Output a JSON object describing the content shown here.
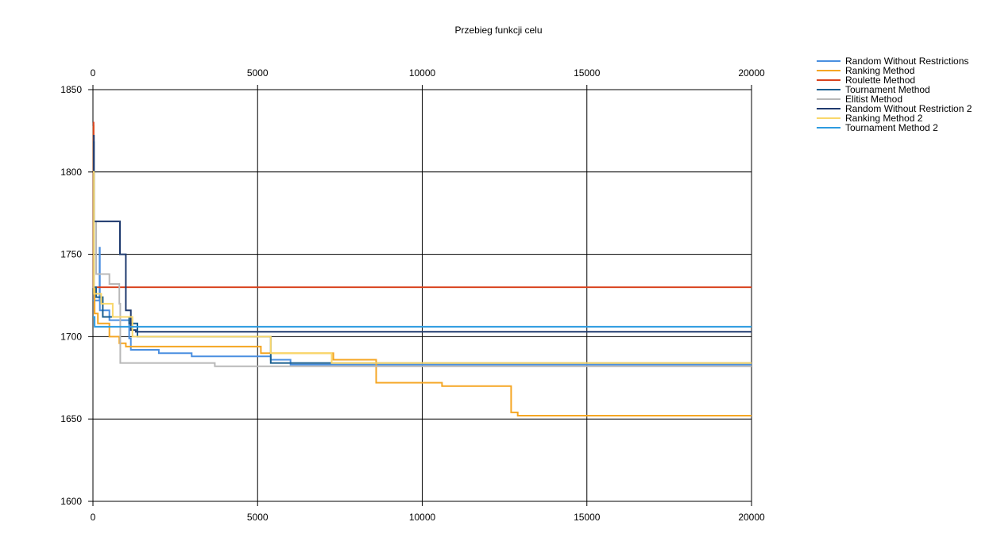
{
  "chart_data": {
    "type": "line",
    "title": "Przebieg funkcji celu",
    "xlabel": "",
    "ylabel": "",
    "xlim": [
      0,
      20000
    ],
    "ylim": [
      1600,
      1850
    ],
    "x_ticks": [
      0,
      5000,
      10000,
      15000,
      20000
    ],
    "y_ticks": [
      1600,
      1650,
      1700,
      1750,
      1800,
      1850
    ],
    "grid": true,
    "legend_position": "top-right",
    "series": [
      {
        "name": "Random Without Restrictions",
        "color": "#4a8fe0",
        "step": true,
        "points": [
          [
            0,
            1722
          ],
          [
            200,
            1722
          ],
          [
            200,
            1754
          ],
          [
            210,
            1754
          ],
          [
            210,
            1716
          ],
          [
            500,
            1716
          ],
          [
            500,
            1710
          ],
          [
            1100,
            1710
          ],
          [
            1100,
            1699
          ],
          [
            1150,
            1699
          ],
          [
            1150,
            1692
          ],
          [
            2000,
            1692
          ],
          [
            2000,
            1690
          ],
          [
            3000,
            1690
          ],
          [
            3000,
            1688
          ],
          [
            5400,
            1688
          ],
          [
            5400,
            1686
          ],
          [
            6000,
            1686
          ],
          [
            6000,
            1683
          ],
          [
            20000,
            1683
          ]
        ]
      },
      {
        "name": "Ranking Method",
        "color": "#f5a623",
        "step": true,
        "points": [
          [
            0,
            1828
          ],
          [
            20,
            1828
          ],
          [
            20,
            1730
          ],
          [
            50,
            1730
          ],
          [
            50,
            1714
          ],
          [
            150,
            1714
          ],
          [
            150,
            1708
          ],
          [
            500,
            1708
          ],
          [
            500,
            1700
          ],
          [
            800,
            1700
          ],
          [
            800,
            1696
          ],
          [
            1000,
            1696
          ],
          [
            1000,
            1694
          ],
          [
            5100,
            1694
          ],
          [
            5100,
            1690
          ],
          [
            7300,
            1690
          ],
          [
            7300,
            1686
          ],
          [
            8600,
            1686
          ],
          [
            8600,
            1672
          ],
          [
            10600,
            1672
          ],
          [
            10600,
            1670
          ],
          [
            12700,
            1670
          ],
          [
            12700,
            1654
          ],
          [
            12900,
            1654
          ],
          [
            12900,
            1652
          ],
          [
            20000,
            1652
          ]
        ]
      },
      {
        "name": "Roulette Method",
        "color": "#d9431e",
        "step": true,
        "points": [
          [
            0,
            1830
          ],
          [
            20,
            1830
          ],
          [
            20,
            1730
          ],
          [
            20000,
            1730
          ]
        ]
      },
      {
        "name": "Tournament Method",
        "color": "#1a5f8f",
        "step": true,
        "points": [
          [
            0,
            1818
          ],
          [
            30,
            1818
          ],
          [
            30,
            1730
          ],
          [
            100,
            1730
          ],
          [
            100,
            1724
          ],
          [
            300,
            1724
          ],
          [
            300,
            1712
          ],
          [
            1100,
            1712
          ],
          [
            1100,
            1708
          ],
          [
            1350,
            1708
          ],
          [
            1350,
            1700
          ],
          [
            5400,
            1700
          ],
          [
            5400,
            1684
          ],
          [
            20000,
            1684
          ]
        ]
      },
      {
        "name": "Elitist Method",
        "color": "#b8b8b8",
        "step": true,
        "points": [
          [
            0,
            1770
          ],
          [
            100,
            1770
          ],
          [
            100,
            1738
          ],
          [
            500,
            1738
          ],
          [
            500,
            1732
          ],
          [
            800,
            1732
          ],
          [
            800,
            1720
          ],
          [
            830,
            1720
          ],
          [
            830,
            1684
          ],
          [
            3700,
            1684
          ],
          [
            3700,
            1682
          ],
          [
            20000,
            1682
          ]
        ]
      },
      {
        "name": "Random Without Restriction 2",
        "color": "#1f3a6e",
        "step": true,
        "points": [
          [
            0,
            1822
          ],
          [
            30,
            1822
          ],
          [
            30,
            1770
          ],
          [
            820,
            1770
          ],
          [
            820,
            1750
          ],
          [
            1000,
            1750
          ],
          [
            1000,
            1716
          ],
          [
            1150,
            1716
          ],
          [
            1150,
            1704
          ],
          [
            1300,
            1704
          ],
          [
            1300,
            1703
          ],
          [
            20000,
            1703
          ]
        ]
      },
      {
        "name": "Ranking Method 2",
        "color": "#f9d76b",
        "step": true,
        "points": [
          [
            0,
            1800
          ],
          [
            30,
            1800
          ],
          [
            30,
            1726
          ],
          [
            250,
            1726
          ],
          [
            250,
            1720
          ],
          [
            600,
            1720
          ],
          [
            600,
            1712
          ],
          [
            1200,
            1712
          ],
          [
            1200,
            1700
          ],
          [
            5400,
            1700
          ],
          [
            5400,
            1690
          ],
          [
            7250,
            1690
          ],
          [
            7250,
            1684
          ],
          [
            20000,
            1684
          ]
        ]
      },
      {
        "name": "Tournament Method 2",
        "color": "#2d9be0",
        "step": true,
        "points": [
          [
            0,
            1712
          ],
          [
            50,
            1712
          ],
          [
            50,
            1706
          ],
          [
            20000,
            1706
          ]
        ]
      }
    ]
  }
}
